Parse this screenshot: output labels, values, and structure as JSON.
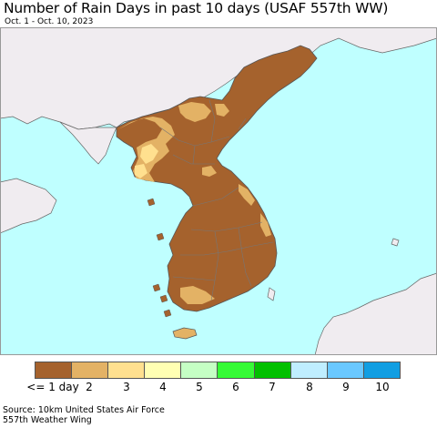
{
  "header": {
    "title": "Number of Rain Days in past 10 days (USAF 557th WW)",
    "subtitle": "Oct. 1 - Oct. 10, 2023"
  },
  "map": {
    "ocean_color": "#bfffff",
    "land_color": "#f0ecf0",
    "border_color": "#707070"
  },
  "legend": {
    "labels": [
      "<= 1 day",
      "2",
      "3",
      "4",
      "5",
      "6",
      "7",
      "8",
      "9",
      "10"
    ],
    "colors": [
      "#a5622d",
      "#e3b265",
      "#ffe08f",
      "#ffffb3",
      "#c5ffc4",
      "#36fa36",
      "#02c000",
      "#bfeeff",
      "#6ac8ff",
      "#119ee2"
    ]
  },
  "footer": {
    "line1": "Source: 10km United States Air Force",
    "line2": "557th Weather Wing"
  }
}
